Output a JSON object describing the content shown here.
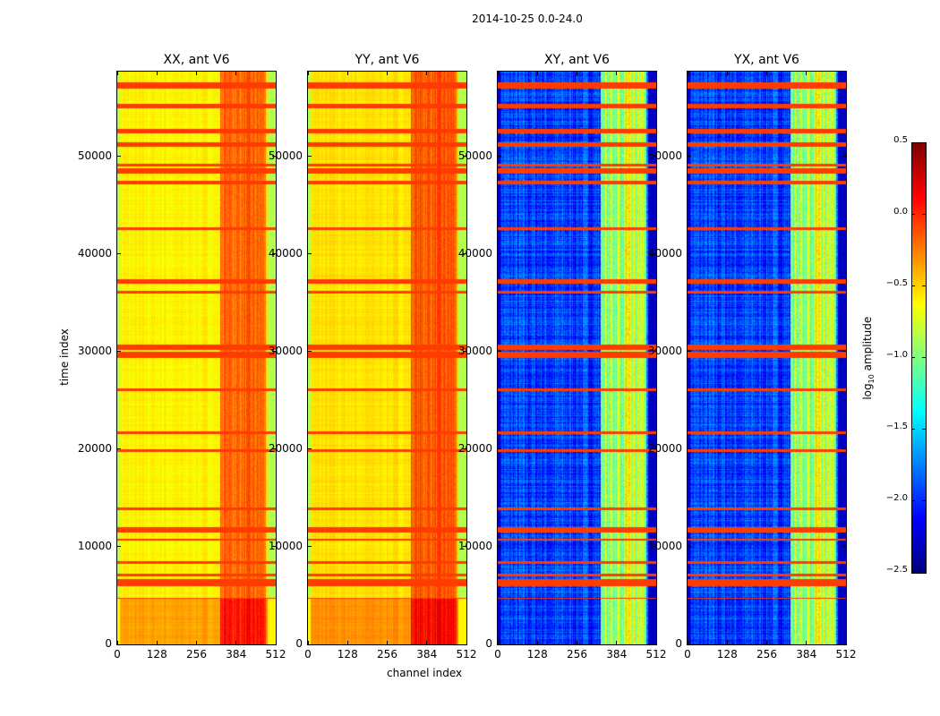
{
  "chart_data": {
    "type": "heatmap",
    "suptitle": "2014-10-25 0.0-24.0",
    "xlabel": "channel index",
    "ylabel": "time index",
    "xlim": [
      0,
      512
    ],
    "ylim": [
      0,
      58700
    ],
    "xticks": [
      "0",
      "128",
      "256",
      "384",
      "512"
    ],
    "yticks": [
      "0",
      "10000",
      "20000",
      "30000",
      "40000",
      "50000"
    ],
    "colormap": "jet",
    "colorbar": {
      "label_prefix": "log",
      "label_sub": "10",
      "label_suffix": " amplitude",
      "range": [
        -2.5,
        0.5
      ],
      "ticks": [
        "0.5",
        "0.0",
        "−0.5",
        "−1.0",
        "−1.5",
        "−2.0",
        "−2.5"
      ]
    },
    "panels": [
      {
        "title": "XX, ant V6",
        "base_level": -0.6,
        "rfi_level": -0.25,
        "edge_level": -0.85
      },
      {
        "title": "YY, ant V6",
        "base_level": -0.55,
        "rfi_level": -0.2,
        "edge_level": -0.85
      },
      {
        "title": "XY, ant V6",
        "base_level": -1.95,
        "rfi_level": -0.9,
        "edge_level": -2.3
      },
      {
        "title": "YX, ant V6",
        "base_level": -1.95,
        "rfi_level": -0.9,
        "edge_level": -2.3
      }
    ],
    "rfi_channel_range": [
      330,
      480
    ],
    "flagged_time_ranges": [
      [
        57000,
        57600
      ],
      [
        55000,
        55400
      ],
      [
        52400,
        52900
      ],
      [
        51000,
        51500
      ],
      [
        49000,
        49300
      ],
      [
        48300,
        48800
      ],
      [
        47200,
        47600
      ],
      [
        42500,
        42800
      ],
      [
        37000,
        37500
      ],
      [
        36000,
        36300
      ],
      [
        30200,
        30800
      ],
      [
        29400,
        30000
      ],
      [
        26000,
        26300
      ],
      [
        21600,
        21900
      ],
      [
        19800,
        20000
      ],
      [
        13800,
        14100
      ],
      [
        11500,
        12100
      ],
      [
        10700,
        10900
      ],
      [
        8300,
        8600
      ],
      [
        7000,
        7300
      ],
      [
        6000,
        6700
      ],
      [
        4700,
        4800
      ]
    ],
    "flag_level": -0.05
  }
}
